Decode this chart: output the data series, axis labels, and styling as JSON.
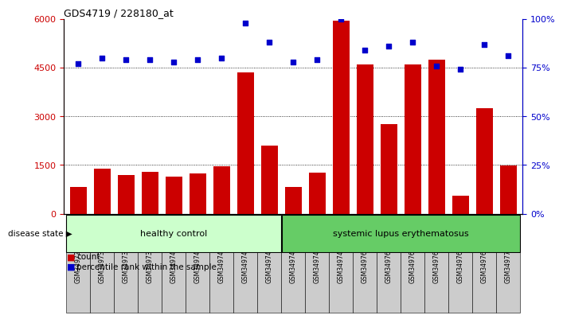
{
  "title": "GDS4719 / 228180_at",
  "samples": [
    "GSM349729",
    "GSM349730",
    "GSM349734",
    "GSM349739",
    "GSM349742",
    "GSM349743",
    "GSM349744",
    "GSM349745",
    "GSM349746",
    "GSM349747",
    "GSM349748",
    "GSM349749",
    "GSM349764",
    "GSM349765",
    "GSM349766",
    "GSM349767",
    "GSM349768",
    "GSM349769",
    "GSM349770"
  ],
  "counts": [
    820,
    1380,
    1200,
    1280,
    1150,
    1250,
    1460,
    4350,
    2100,
    820,
    1260,
    5950,
    4600,
    2750,
    4600,
    4750,
    560,
    3250,
    1480
  ],
  "percentiles": [
    77,
    80,
    79,
    79,
    78,
    79,
    80,
    98,
    88,
    78,
    79,
    100,
    84,
    86,
    88,
    76,
    74,
    87,
    81
  ],
  "healthy_control_count": 9,
  "systemic_lupus_count": 10,
  "bar_color": "#cc0000",
  "dot_color": "#0000cc",
  "healthy_bg_light": "#ccffcc",
  "healthy_bg_dark": "#66cc66",
  "lupus_bg": "#44bb44",
  "label_bg": "#cccccc",
  "ylim_left": [
    0,
    6000
  ],
  "ylim_right": [
    0,
    100
  ],
  "yticks_left": [
    0,
    1500,
    3000,
    4500,
    6000
  ],
  "yticks_right": [
    0,
    25,
    50,
    75,
    100
  ],
  "ytick_labels_left": [
    "0",
    "1500",
    "3000",
    "4500",
    "6000"
  ],
  "ytick_labels_right": [
    "0%",
    "25%",
    "50%",
    "75%",
    "100%"
  ],
  "legend_count_label": "count",
  "legend_percentile_label": "percentile rank within the sample",
  "disease_state_label": "disease state",
  "healthy_label": "healthy control",
  "lupus_label": "systemic lupus erythematosus"
}
